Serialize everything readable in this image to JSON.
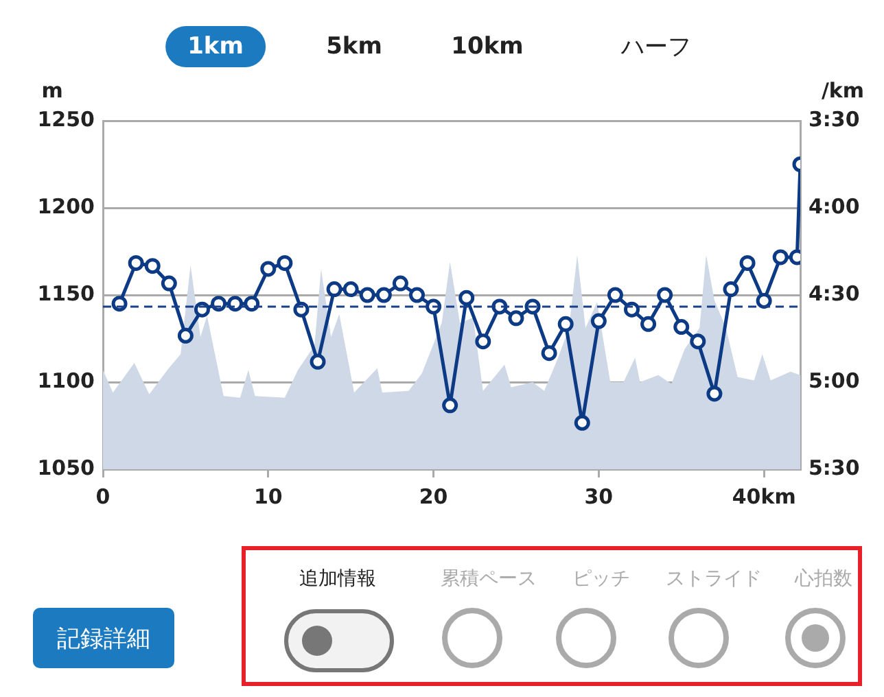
{
  "chart_data": {
    "type": "line",
    "annotations": [
      "1km",
      "5km",
      "10km",
      "ハーフ",
      "追加情報",
      "累積ペース",
      "ピッチ",
      "ストライド",
      "心拍数",
      "記録詳細"
    ],
    "ylabel": "m",
    "y2label": "/km",
    "xlim": [
      0,
      42.195
    ],
    "xticks": [
      0,
      10,
      20,
      30,
      {
        "value": 40,
        "label": "40km"
      }
    ],
    "ylim": [
      1050,
      1250
    ],
    "yticks": [
      1050,
      1100,
      1150,
      1200,
      1250
    ],
    "y2lim": [
      330,
      210
    ],
    "y2ticks": [
      {
        "value": 210,
        "label": "3:30"
      },
      {
        "value": 240,
        "label": "4:00"
      },
      {
        "value": 270,
        "label": "4:30"
      },
      {
        "value": 300,
        "label": "5:00"
      },
      {
        "value": 330,
        "label": "5:30"
      }
    ],
    "grid": "y",
    "legend": false,
    "marker": "circle",
    "ref_lines": [
      {
        "axis": "y2",
        "value": 274,
        "color": "#1a3f8a",
        "line_style": "dashed"
      }
    ],
    "series": [
      {
        "type": "area",
        "marker": "none",
        "color": "#cfd8e6",
        "x": [
          0,
          0.6,
          1.9,
          2.8,
          3.9,
          4.7,
          5.3,
          5.9,
          6.3,
          7.3,
          8.3,
          8.8,
          9.2,
          11,
          11.8,
          12.8,
          13.2,
          13.8,
          14.3,
          15.2,
          16.6,
          16.9,
          18.5,
          19.3,
          20.5,
          21,
          21.6,
          22.4,
          23.0,
          24.3,
          24.7,
          26,
          26.7,
          27.5,
          28.2,
          28.7,
          29.2,
          29.9,
          30.7,
          31.5,
          32.2,
          32.5,
          33.6,
          34.4,
          35.2,
          36.1,
          36.5,
          37,
          37.7,
          38.4,
          39.4,
          39.9,
          40.4,
          41.6,
          42.195
        ],
        "values": [
          1107,
          1094,
          1111,
          1093,
          1107,
          1116,
          1167,
          1126,
          1138,
          1092,
          1091,
          1107,
          1092,
          1091,
          1107,
          1121,
          1165,
          1126,
          1139,
          1094,
          1108,
          1094,
          1095,
          1105,
          1134,
          1169,
          1134,
          1137,
          1095,
          1110,
          1097,
          1100,
          1095,
          1113,
          1131,
          1173,
          1131,
          1146,
          1100,
          1100,
          1114,
          1100,
          1104,
          1099,
          1119,
          1131,
          1173,
          1147,
          1131,
          1103,
          1101,
          1116,
          1101,
          1106,
          1104
        ]
      },
      {
        "axis": "y2",
        "color": "#0d3a85",
        "x": [
          1,
          2,
          3,
          4,
          5,
          6,
          7,
          8,
          9,
          10,
          11,
          12,
          13,
          14,
          15,
          16,
          17,
          18,
          19,
          20,
          21,
          22,
          23,
          24,
          25,
          26,
          27,
          28,
          29,
          30,
          31,
          32,
          33,
          34,
          35,
          36,
          37,
          38,
          39,
          40,
          41,
          42,
          42.195
        ],
        "values": [
          273,
          259,
          260,
          266,
          284,
          275,
          273,
          273,
          273,
          261,
          259,
          275,
          293,
          268,
          268,
          270,
          270,
          266,
          270,
          274,
          308,
          271,
          286,
          274,
          278,
          274,
          290,
          280,
          314,
          279,
          270,
          275,
          280,
          270,
          281,
          286,
          304,
          268,
          259,
          272,
          257,
          257,
          225
        ]
      }
    ]
  }
}
